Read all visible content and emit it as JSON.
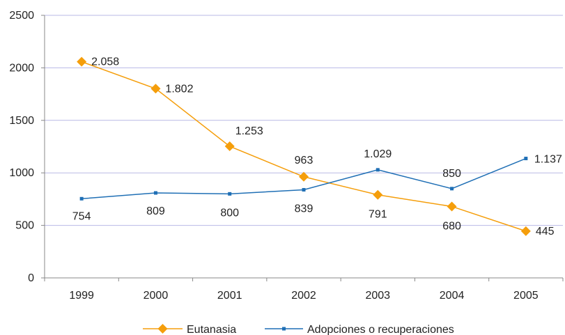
{
  "chart_data": {
    "type": "line",
    "categories": [
      "1999",
      "2000",
      "2001",
      "2002",
      "2003",
      "2004",
      "2005"
    ],
    "ylim": [
      0,
      2500
    ],
    "yticks": [
      "0",
      "500",
      "1000",
      "1500",
      "2000",
      "2500"
    ],
    "grid": "horizontal",
    "legend_position": "bottom",
    "series": [
      {
        "name": "Eutanasia",
        "values": [
          2058,
          1802,
          1253,
          963,
          791,
          680,
          445
        ],
        "labels": [
          "2.058",
          "1.802",
          "1.253",
          "963",
          "791",
          "680",
          "445"
        ],
        "color": "#F59E0B",
        "marker": "diamond"
      },
      {
        "name": "Adopciones o recuperaciones",
        "values": [
          754,
          809,
          800,
          839,
          1029,
          850,
          1137
        ],
        "labels": [
          "754",
          "809",
          "800",
          "839",
          "1.029",
          "850",
          "1.137"
        ],
        "color": "#1F6FB5",
        "marker": "square"
      }
    ],
    "gridline_color": "#B9B9E6"
  }
}
